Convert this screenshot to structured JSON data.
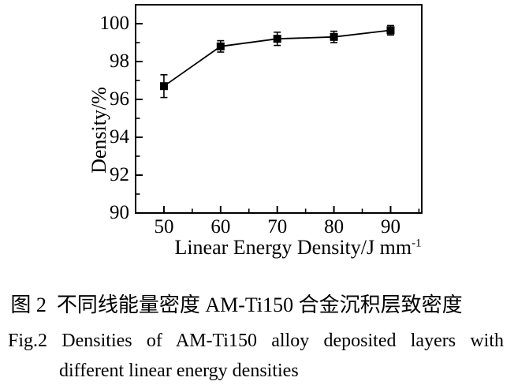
{
  "chart_data": {
    "type": "line",
    "series_name": "density-vs-linear-energy-density",
    "x": [
      50,
      60,
      70,
      80,
      90
    ],
    "y": [
      96.7,
      98.8,
      99.2,
      99.3,
      99.65
    ],
    "yerr": [
      0.6,
      0.3,
      0.35,
      0.3,
      0.25
    ],
    "marker": "filled-square",
    "error_bars": "vertical-with-caps",
    "line_color": "#000000",
    "marker_color": "#000000",
    "background": "#ffffff",
    "xlabel_base": "Linear Energy Density/J mm",
    "xlabel_sup": "-1",
    "ylabel": "Density/%",
    "xlim": [
      45,
      95.5
    ],
    "ylim": [
      90,
      101
    ],
    "x_major_ticks": [
      50,
      60,
      70,
      80,
      90
    ],
    "x_minor_ticks": [
      55,
      65,
      75,
      85,
      95
    ],
    "y_major_ticks": [
      90,
      92,
      94,
      96,
      98,
      100
    ],
    "y_minor_ticks": [
      91,
      93,
      95,
      97,
      99
    ],
    "grid": "off",
    "legend": "none",
    "frame": "full-box"
  },
  "captions": {
    "chinese": "图 2  不同线能量密度 AM-Ti150 合金沉积层致密度",
    "english_line1": "Fig.2  Densities of AM-Ti150 alloy deposited layers with",
    "english_line2": "different linear energy densities"
  }
}
